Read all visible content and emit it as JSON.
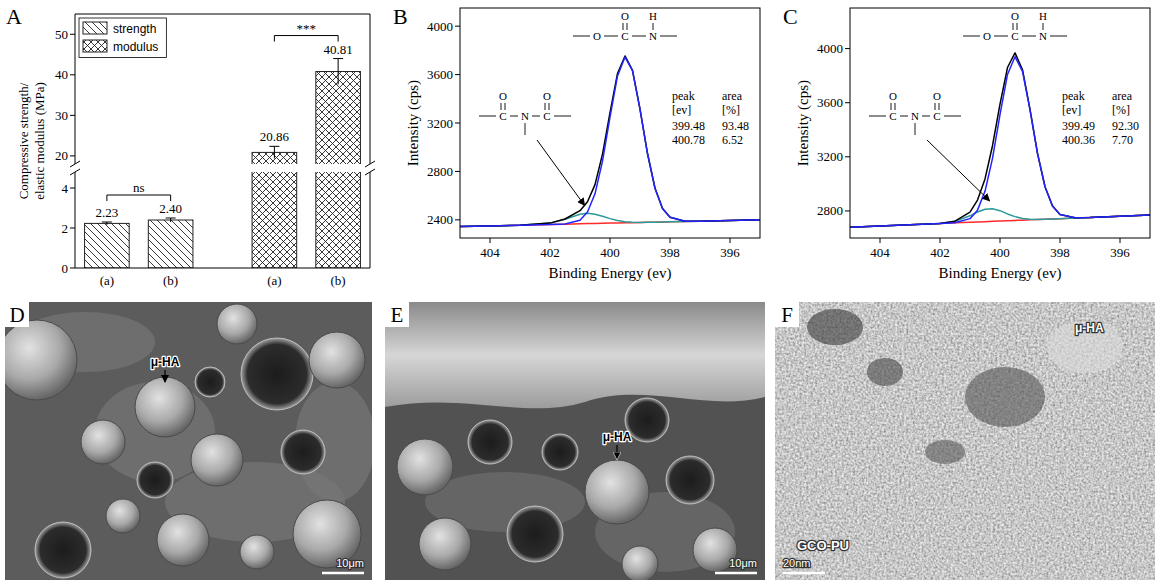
{
  "chart_data": [
    {
      "type": "bar",
      "panel": "A",
      "y_label": "Compressive strength/ elastic modulus (MPa)",
      "categories": [
        "(a)",
        "(b)",
        "(a)",
        "(b)"
      ],
      "series": [
        {
          "name": "strength",
          "color": "#222222",
          "values": [
            2.23,
            2.4,
            null,
            null
          ],
          "value_labels": [
            "2.23",
            "2.40",
            null,
            null
          ],
          "errors": [
            0.07,
            0.1,
            null,
            null
          ]
        },
        {
          "name": "modulus",
          "color": "#222222",
          "values": [
            null,
            null,
            20.86,
            40.81
          ],
          "value_labels": [
            null,
            null,
            "20.86",
            "40.81"
          ],
          "errors": [
            null,
            null,
            1.5,
            3.2
          ]
        }
      ],
      "ylim": [
        0,
        55
      ],
      "ybreak": [
        4.8,
        18
      ],
      "yticks": [
        0,
        2,
        4,
        20,
        30,
        40,
        50
      ],
      "annotations": [
        "ns",
        "***"
      ],
      "data_labels": true,
      "legend": "upper left"
    },
    {
      "type": "line",
      "panel": "B",
      "x_label": "Binding Energy (ev)",
      "y_label": "Intensity (cps)",
      "x": [
        405,
        404,
        403,
        402,
        401.5,
        401,
        400.75,
        400.5,
        400.25,
        400,
        399.75,
        399.5,
        399.25,
        399,
        398.75,
        398.5,
        398.25,
        398,
        397.5,
        397,
        396,
        395
      ],
      "series": [
        {
          "color": "#ff2a2a",
          "values": [
            2345,
            2350,
            2356,
            2362,
            2364,
            2367,
            2369,
            2370,
            2371,
            2373,
            2374,
            2375,
            2377,
            2378,
            2380,
            2381,
            2382,
            2384,
            2386,
            2389,
            2395,
            2400
          ]
        },
        {
          "color": "#2a9a9a",
          "values": [
            2345,
            2350,
            2356,
            2373,
            2405,
            2446,
            2454,
            2446,
            2429,
            2410,
            2394,
            2384,
            2380,
            2379,
            2380,
            2381,
            2382,
            2384,
            2386,
            2389,
            2395,
            2400
          ]
        },
        {
          "color": "#000000",
          "values": [
            2345,
            2350,
            2356,
            2373,
            2407,
            2476,
            2549,
            2691,
            2943,
            3286,
            3609,
            3754,
            3635,
            3315,
            2948,
            2661,
            2494,
            2421,
            2388,
            2389,
            2395,
            2400
          ]
        },
        {
          "color": "#2323ff",
          "values": [
            2345,
            2350,
            2356,
            2362,
            2366,
            2397,
            2464,
            2615,
            2885,
            3249,
            3589,
            3745,
            3632,
            3314,
            2948,
            2661,
            2494,
            2421,
            2388,
            2389,
            2395,
            2400
          ]
        }
      ],
      "xlim": [
        405,
        395
      ],
      "xticks": [
        404,
        402,
        400,
        398,
        396
      ],
      "ylim": [
        2250,
        4150
      ],
      "yticks": [
        2400,
        2800,
        3200,
        3600,
        4000
      ],
      "table": {
        "header": [
          [
            "peak",
            "[ev]"
          ],
          [
            "area",
            "[%]"
          ]
        ],
        "rows": [
          [
            "399.48",
            "93.48"
          ],
          [
            "400.78",
            "6.52"
          ]
        ]
      },
      "structures": {
        "urethane": {
          "atoms": [
            "O",
            "C",
            "N"
          ],
          "carbonyl": "O",
          "h": "H"
        },
        "imide": {
          "atoms": [
            "C",
            "N",
            "C"
          ],
          "carbonyl": "O"
        }
      }
    },
    {
      "type": "line",
      "panel": "C",
      "x_label": "Binding Energy (ev)",
      "y_label": "Intensity (cps)",
      "x": [
        405,
        404,
        403,
        402,
        401.5,
        401,
        400.75,
        400.5,
        400.25,
        400,
        399.75,
        399.5,
        399.25,
        399,
        398.75,
        398.5,
        398.25,
        398,
        397.5,
        397,
        396,
        395
      ],
      "series": [
        {
          "color": "#ff2a2a",
          "values": [
            2680,
            2689,
            2698,
            2707,
            2712,
            2716,
            2718,
            2721,
            2723,
            2725,
            2727,
            2730,
            2732,
            2734,
            2736,
            2739,
            2741,
            2743,
            2748,
            2752,
            2761,
            2770
          ]
        },
        {
          "color": "#2a9a9a",
          "values": [
            2680,
            2689,
            2698,
            2708,
            2723,
            2764,
            2792,
            2813,
            2816,
            2802,
            2778,
            2758,
            2744,
            2738,
            2737,
            2739,
            2741,
            2743,
            2748,
            2752,
            2761,
            2770
          ]
        },
        {
          "color": "#000000",
          "values": [
            2680,
            2689,
            2698,
            2708,
            2724,
            2791,
            2880,
            3037,
            3282,
            3589,
            3860,
            3968,
            3844,
            3551,
            3226,
            2979,
            2837,
            2774,
            2750,
            2752,
            2761,
            2770
          ]
        },
        {
          "color": "#2323ff",
          "values": [
            2680,
            2689,
            2698,
            2707,
            2713,
            2743,
            2806,
            2945,
            3189,
            3512,
            3809,
            3940,
            3832,
            3547,
            3225,
            2979,
            2837,
            2774,
            2750,
            2752,
            2761,
            2770
          ]
        }
      ],
      "xlim": [
        405,
        395
      ],
      "xticks": [
        404,
        402,
        400,
        398,
        396
      ],
      "ylim": [
        2600,
        4300
      ],
      "yticks": [
        2800,
        3200,
        3600,
        4000
      ],
      "table": {
        "header": [
          [
            "peak",
            "[ev]"
          ],
          [
            "area",
            "[%]"
          ]
        ],
        "rows": [
          [
            "399.49",
            "92.30"
          ],
          [
            "400.36",
            "7.70"
          ]
        ]
      },
      "structures": {
        "urethane": {
          "atoms": [
            "O",
            "C",
            "N"
          ],
          "carbonyl": "O",
          "h": "H"
        },
        "imide": {
          "atoms": [
            "C",
            "N",
            "C"
          ],
          "carbonyl": "O"
        }
      }
    }
  ],
  "micrographs": [
    {
      "panel": "D",
      "labels": [
        "μ-HA"
      ],
      "scale_bar": "10μm"
    },
    {
      "panel": "E",
      "labels": [
        "μ-HA"
      ],
      "scale_bar": "10μm"
    },
    {
      "panel": "F",
      "labels": [
        "μ-HA",
        "GCO-PU"
      ],
      "scale_bar": "20nm"
    }
  ]
}
